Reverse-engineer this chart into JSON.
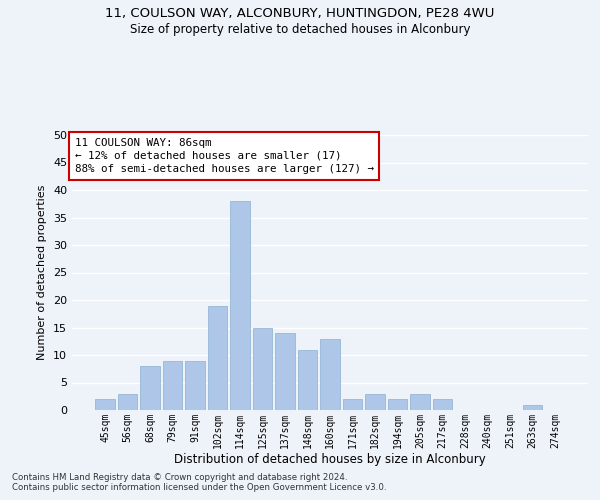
{
  "title1": "11, COULSON WAY, ALCONBURY, HUNTINGDON, PE28 4WU",
  "title2": "Size of property relative to detached houses in Alconbury",
  "xlabel": "Distribution of detached houses by size in Alconbury",
  "ylabel": "Number of detached properties",
  "categories": [
    "45sqm",
    "56sqm",
    "68sqm",
    "79sqm",
    "91sqm",
    "102sqm",
    "114sqm",
    "125sqm",
    "137sqm",
    "148sqm",
    "160sqm",
    "171sqm",
    "182sqm",
    "194sqm",
    "205sqm",
    "217sqm",
    "228sqm",
    "240sqm",
    "251sqm",
    "263sqm",
    "274sqm"
  ],
  "values": [
    2,
    3,
    8,
    9,
    9,
    19,
    38,
    15,
    14,
    11,
    13,
    2,
    3,
    2,
    3,
    2,
    0,
    0,
    0,
    1,
    0
  ],
  "bar_color": "#aec6e8",
  "bar_edgecolor": "#8ab0d0",
  "background_color": "#eef2f9",
  "grid_color": "#ffffff",
  "annotation_box_text": "11 COULSON WAY: 86sqm\n← 12% of detached houses are smaller (17)\n88% of semi-detached houses are larger (127) →",
  "annotation_box_color": "#cc0000",
  "ylim": [
    0,
    50
  ],
  "yticks": [
    0,
    5,
    10,
    15,
    20,
    25,
    30,
    35,
    40,
    45,
    50
  ],
  "footer1": "Contains HM Land Registry data © Crown copyright and database right 2024.",
  "footer2": "Contains public sector information licensed under the Open Government Licence v3.0."
}
